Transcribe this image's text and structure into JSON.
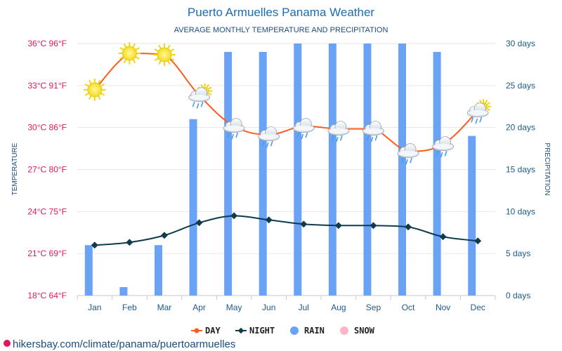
{
  "chart_data": {
    "type": "line",
    "title": "Puerto Armuelles Panama Weather",
    "subtitle": "AVERAGE MONTHLY TEMPERATURE AND PRECIPITATION",
    "ylabel_left": "TEMPERATURE",
    "ylabel_right": "PRECIPITATION",
    "categories": [
      "Jan",
      "Feb",
      "Mar",
      "Apr",
      "May",
      "Jun",
      "Jul",
      "Aug",
      "Sep",
      "Oct",
      "Nov",
      "Dec"
    ],
    "ylim_left": [
      18,
      36
    ],
    "ylim_right": [
      0,
      30
    ],
    "left_ticks": [
      "18°C 64°F",
      "21°C 69°F",
      "24°C 75°F",
      "27°C 80°F",
      "30°C 86°F",
      "33°C 91°F",
      "36°C 96°F"
    ],
    "right_ticks": [
      "0 days",
      "5 days",
      "10 days",
      "15 days",
      "20 days",
      "25 days",
      "30 days"
    ],
    "series": [
      {
        "name": "DAY",
        "color": "#ff5a1f",
        "type": "line",
        "values": [
          32.7,
          35.3,
          35.2,
          32.3,
          30.1,
          29.5,
          30.1,
          29.9,
          29.9,
          28.3,
          28.8,
          31.2
        ]
      },
      {
        "name": "NIGHT",
        "color": "#0f3b4c",
        "type": "line",
        "values": [
          21.6,
          21.8,
          22.3,
          23.2,
          23.7,
          23.4,
          23.1,
          23.0,
          23.0,
          22.9,
          22.2,
          21.9
        ]
      },
      {
        "name": "RAIN",
        "color": "#6aa3f6",
        "type": "bar",
        "values": [
          6,
          1,
          6,
          21,
          29,
          29,
          30,
          30,
          30,
          30,
          29,
          19
        ]
      },
      {
        "name": "SNOW",
        "color": "#ffb6c8",
        "type": "bar",
        "values": [
          0,
          0,
          0,
          0,
          0,
          0,
          0,
          0,
          0,
          0,
          0,
          0
        ]
      }
    ],
    "icons": [
      "sun-icon",
      "sun-icon",
      "sun-icon",
      "sun-cloud-icon",
      "rain-cloud-icon",
      "rain-cloud-icon",
      "rain-cloud-icon",
      "rain-cloud-icon",
      "rain-cloud-icon",
      "rain-cloud-icon",
      "rain-cloud-icon",
      "sun-cloud-icon"
    ],
    "grid": true,
    "legend_position": "bottom"
  },
  "watermark": "hikersbay.com/climate/panama/puertoarmuelles"
}
